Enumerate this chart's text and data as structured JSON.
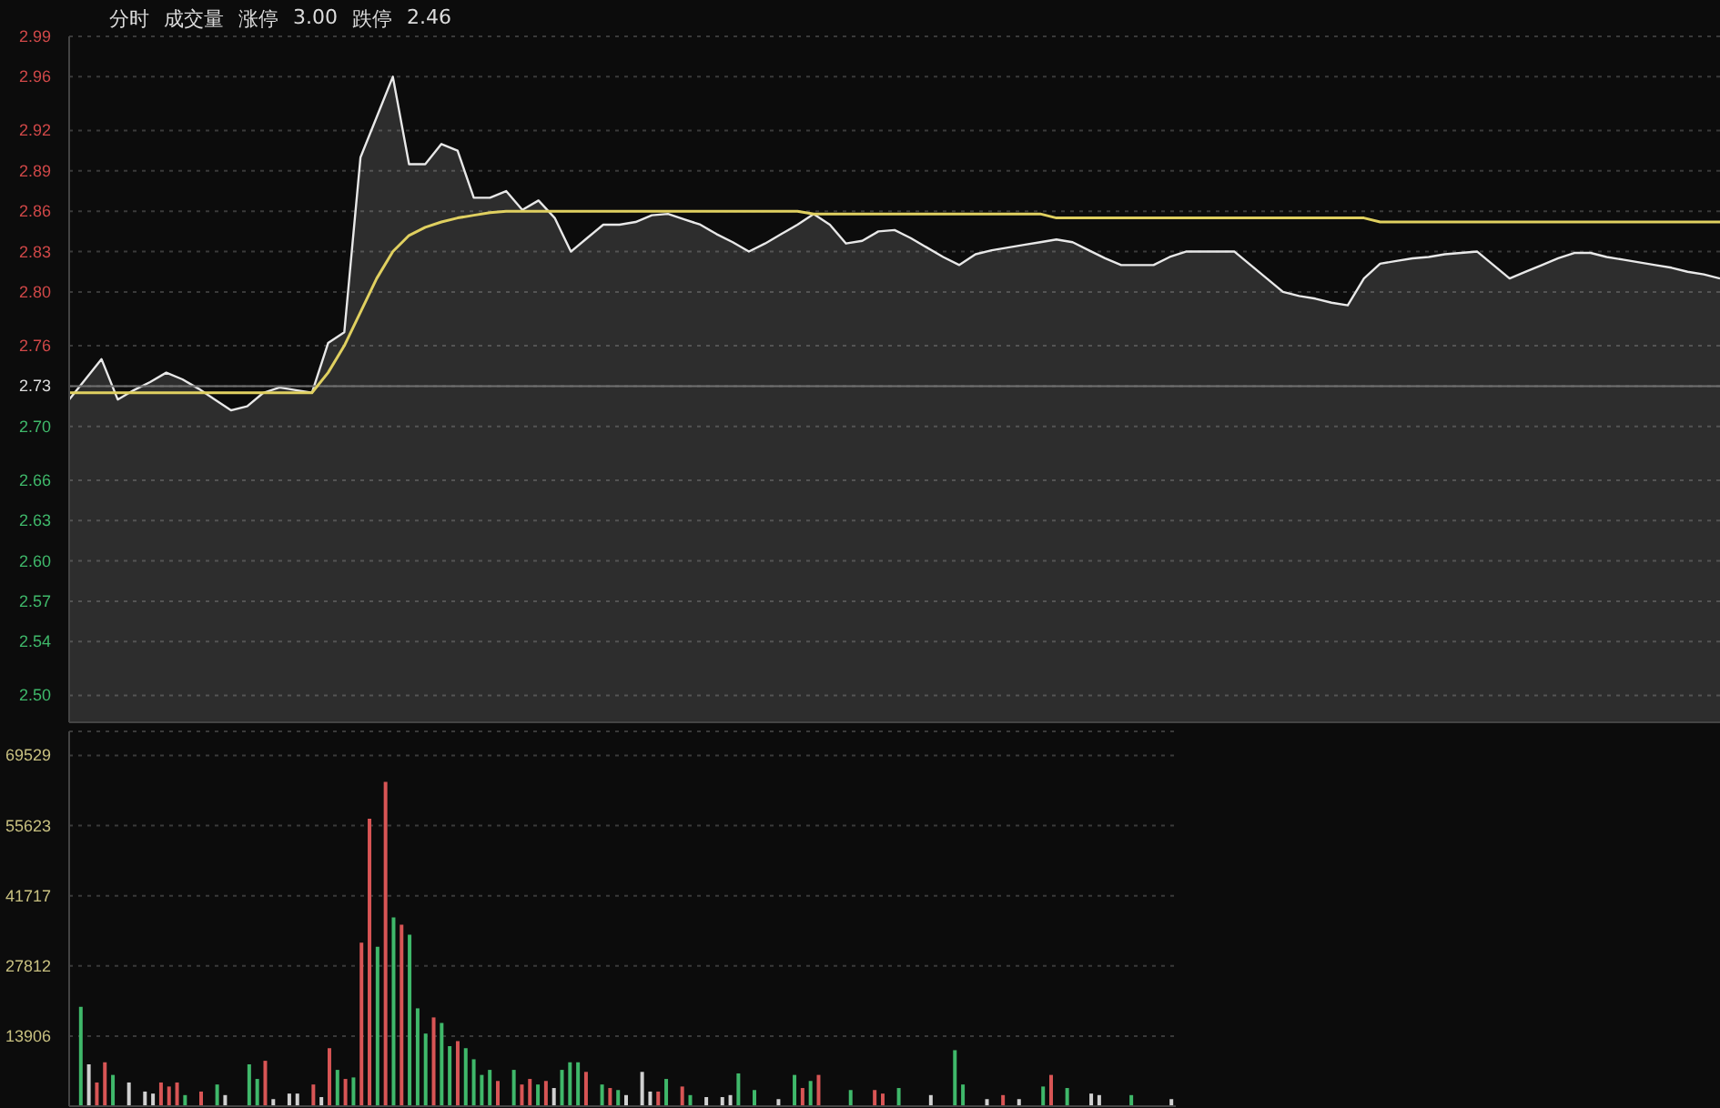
{
  "chart_data": [
    {
      "type": "area",
      "annotations": [
        "分时",
        "成交量",
        "涨停",
        "3.00",
        "跌停",
        "2.46"
      ],
      "categories": [
        null,
        null,
        null,
        null,
        null,
        null,
        null,
        null,
        null,
        null,
        null,
        null,
        null,
        null,
        null,
        null,
        null,
        null,
        null,
        null,
        null,
        null,
        null,
        null,
        null,
        null,
        null,
        null,
        null,
        null,
        null,
        null,
        null,
        null,
        null,
        null,
        null,
        null,
        null,
        null,
        null,
        null,
        null,
        null,
        null,
        null,
        null,
        null,
        null,
        null,
        null,
        null,
        null,
        null,
        null,
        null,
        null,
        null,
        null,
        null,
        null,
        null,
        null,
        null,
        null,
        null,
        null,
        null,
        null,
        null,
        null,
        null,
        null,
        null,
        null,
        null,
        null,
        null,
        null,
        null,
        null,
        null,
        null,
        null,
        null,
        null,
        null,
        null,
        null,
        null,
        null,
        null,
        null,
        null,
        null,
        null,
        null,
        null,
        null,
        null,
        null,
        null,
        null
      ],
      "ylim": [
        2.48,
        2.99
      ],
      "yticks": [
        {
          "value": 2.5,
          "label": "2.50"
        },
        2.54,
        2.57,
        {
          "value": 2.6,
          "label": "2.60"
        },
        2.63,
        2.66,
        {
          "value": 2.7,
          "label": "2.70"
        },
        2.73,
        2.76,
        {
          "value": 2.8,
          "label": "2.80"
        },
        2.83,
        2.86,
        2.89,
        2.92,
        2.96,
        2.99
      ],
      "tick_labels": "y",
      "grid": "y",
      "ref_lines": [
        {
          "axis": "y",
          "value": 2.73,
          "color": "#707070"
        }
      ],
      "series": [
        {
          "type": "area",
          "color": "#e8e8e8",
          "values": [
            2.72,
            2.735,
            2.75,
            2.72,
            2.727,
            2.733,
            2.74,
            2.735,
            2.728,
            2.72,
            2.712,
            2.715,
            2.725,
            2.729,
            2.727,
            2.725,
            2.762,
            2.77,
            2.9,
            2.93,
            2.96,
            2.895,
            2.895,
            2.91,
            2.905,
            2.87,
            2.87,
            2.875,
            2.861,
            2.868,
            2.855,
            2.83,
            2.84,
            2.85,
            2.85,
            2.852,
            2.857,
            2.858,
            2.854,
            2.85,
            2.843,
            2.837,
            2.83,
            2.836,
            2.843,
            2.85,
            2.858,
            2.85,
            2.836,
            2.838,
            2.845,
            2.846,
            2.84,
            2.833,
            2.826,
            2.82,
            2.828,
            2.831,
            2.833,
            2.835,
            2.837,
            2.839,
            2.837,
            2.831,
            2.825,
            2.82,
            2.82,
            2.82,
            2.826,
            2.83,
            2.83,
            2.83,
            2.83,
            2.82,
            2.81,
            2.8,
            2.797,
            2.795,
            2.792,
            2.79,
            2.81,
            2.821,
            2.823,
            2.825,
            2.826,
            2.828,
            2.829,
            2.83,
            2.82,
            2.81,
            2.815,
            2.82,
            2.825,
            2.829,
            2.829,
            2.826,
            2.824,
            2.822,
            2.82,
            2.818,
            2.815,
            2.813,
            2.81
          ]
        },
        {
          "type": "line",
          "color": "#e0d060",
          "values": [
            2.725,
            2.725,
            2.725,
            2.725,
            2.725,
            2.725,
            2.725,
            2.725,
            2.725,
            2.725,
            2.725,
            2.725,
            2.725,
            2.725,
            2.725,
            2.725,
            2.74,
            2.76,
            2.785,
            2.81,
            2.83,
            2.842,
            2.848,
            2.852,
            2.855,
            2.857,
            2.859,
            2.86,
            2.86,
            2.86,
            2.86,
            2.86,
            2.86,
            2.86,
            2.86,
            2.86,
            2.86,
            2.86,
            2.86,
            2.86,
            2.86,
            2.86,
            2.86,
            2.86,
            2.86,
            2.86,
            2.858,
            2.858,
            2.858,
            2.858,
            2.858,
            2.858,
            2.858,
            2.858,
            2.858,
            2.858,
            2.858,
            2.858,
            2.858,
            2.858,
            2.858,
            2.855,
            2.855,
            2.855,
            2.855,
            2.855,
            2.855,
            2.855,
            2.855,
            2.855,
            2.855,
            2.855,
            2.855,
            2.855,
            2.855,
            2.855,
            2.855,
            2.855,
            2.855,
            2.855,
            2.855,
            2.852,
            2.852,
            2.852,
            2.852,
            2.852,
            2.852,
            2.852,
            2.852,
            2.852,
            2.852,
            2.852,
            2.852,
            2.852,
            2.852,
            2.852,
            2.852,
            2.852,
            2.852,
            2.852,
            2.852,
            2.852,
            2.852
          ]
        }
      ]
    },
    {
      "type": "bar",
      "categories": [
        null,
        null,
        null,
        null,
        null,
        null,
        null,
        null,
        null,
        null,
        null,
        null,
        null,
        null,
        null,
        null,
        null,
        null,
        null,
        null,
        null,
        null,
        null,
        null,
        null,
        null,
        null,
        null,
        null,
        null,
        null,
        null,
        null,
        null,
        null,
        null,
        null,
        null,
        null,
        null,
        null,
        null,
        null,
        null,
        null,
        null,
        null,
        null,
        null,
        null,
        null,
        null,
        null,
        null,
        null,
        null,
        null,
        null,
        null,
        null,
        null,
        null,
        null,
        null,
        null,
        null,
        null,
        null,
        null,
        null,
        null,
        null,
        null,
        null,
        null,
        null,
        null,
        null,
        null,
        null,
        null,
        null,
        null,
        null,
        null,
        null,
        null,
        null,
        null,
        null,
        null,
        null,
        null,
        null,
        null,
        null,
        null,
        null,
        null,
        null,
        null,
        null,
        null,
        null,
        null,
        null,
        null,
        null,
        null,
        null,
        null,
        null,
        null,
        null,
        null,
        null,
        null,
        null,
        null,
        null,
        null,
        null,
        null,
        null,
        null,
        null,
        null,
        null,
        null,
        null,
        null,
        null,
        null,
        null,
        null,
        null,
        null,
        null
      ],
      "ylim": [
        0,
        74300
      ],
      "yticks": [
        13906,
        27812,
        41717,
        55623,
        69529
      ],
      "tick_labels": "y",
      "grid": "y",
      "values": [
        null,
        19700,
        8300,
        4700,
        8700,
        6200,
        null,
        4700,
        null,
        2900,
        2500,
        4700,
        3900,
        4700,
        2200,
        null,
        2900,
        null,
        4300,
        2200,
        null,
        null,
        8300,
        5400,
        9000,
        1400,
        null,
        2500,
        2500,
        null,
        4300,
        1800,
        11500,
        7200,
        5400,
        5700,
        32400,
        57000,
        31600,
        64300,
        37400,
        36000,
        34000,
        19400,
        14400,
        17600,
        16500,
        11900,
        12900,
        11500,
        9300,
        6200,
        7200,
        5000,
        null,
        7200,
        4300,
        5400,
        4300,
        5000,
        3600,
        7200,
        8700,
        8700,
        6800,
        null,
        4300,
        3600,
        3200,
        2200,
        null,
        6800,
        2900,
        2900,
        5400,
        null,
        3900,
        2200,
        null,
        1800,
        null,
        1800,
        2200,
        6500,
        null,
        3200,
        null,
        null,
        1400,
        null,
        6200,
        3600,
        5000,
        6200,
        null,
        null,
        null,
        3200,
        null,
        null,
        3200,
        2500,
        null,
        3600,
        null,
        null,
        null,
        2200,
        null,
        null,
        11100,
        4300,
        null,
        null,
        1400,
        null,
        2200,
        null,
        1400,
        null,
        null,
        3900,
        6200,
        null,
        3600,
        null,
        null,
        2500,
        2200,
        null,
        null,
        null,
        2200,
        null,
        null,
        null,
        null,
        1400
      ],
      "colors": [
        null,
        "#3fb86a",
        "#d0d0d0",
        "#d85555",
        "#d85555",
        "#3fb86a",
        null,
        "#d0d0d0",
        null,
        "#d0d0d0",
        "#d0d0d0",
        "#d85555",
        "#d85555",
        "#d85555",
        "#3fb86a",
        null,
        "#d85555",
        null,
        "#3fb86a",
        "#d0d0d0",
        null,
        null,
        "#3fb86a",
        "#3fb86a",
        "#d85555",
        "#d0d0d0",
        null,
        "#d0d0d0",
        "#d0d0d0",
        null,
        "#d85555",
        "#d0d0d0",
        "#d85555",
        "#3fb86a",
        "#d85555",
        "#3fb86a",
        "#d85555",
        "#d85555",
        "#3fb86a",
        "#d85555",
        "#3fb86a",
        "#d85555",
        "#3fb86a",
        "#3fb86a",
        "#3fb86a",
        "#d85555",
        "#3fb86a",
        "#3fb86a",
        "#d85555",
        "#3fb86a",
        "#3fb86a",
        "#3fb86a",
        "#3fb86a",
        "#d85555",
        null,
        "#3fb86a",
        "#d85555",
        "#d85555",
        "#3fb86a",
        "#d85555",
        "#d0d0d0",
        "#3fb86a",
        "#3fb86a",
        "#3fb86a",
        "#d85555",
        null,
        "#3fb86a",
        "#d85555",
        "#3fb86a",
        "#d0d0d0",
        null,
        "#d0d0d0",
        "#d0d0d0",
        "#d85555",
        "#3fb86a",
        null,
        "#d85555",
        "#3fb86a",
        null,
        "#d0d0d0",
        null,
        "#d0d0d0",
        "#d0d0d0",
        "#3fb86a",
        null,
        "#3fb86a",
        null,
        null,
        "#d0d0d0",
        null,
        "#3fb86a",
        "#d85555",
        "#3fb86a",
        "#d85555",
        null,
        null,
        null,
        "#3fb86a",
        null,
        null,
        "#d85555",
        "#d85555",
        null,
        "#3fb86a",
        null,
        null,
        null,
        "#d0d0d0",
        null,
        null,
        "#3fb86a",
        "#3fb86a",
        null,
        null,
        "#d0d0d0",
        null,
        "#d85555",
        null,
        "#d0d0d0",
        null,
        null,
        "#3fb86a",
        "#d85555",
        null,
        "#3fb86a",
        null,
        null,
        "#d0d0d0",
        "#d0d0d0",
        null,
        null,
        null,
        "#3fb86a",
        null,
        null,
        null,
        null,
        "#d0d0d0"
      ]
    }
  ]
}
